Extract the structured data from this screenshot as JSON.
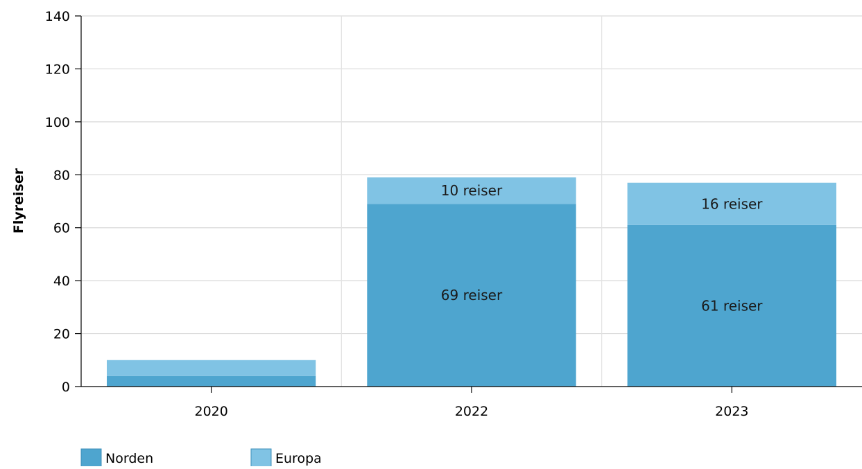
{
  "chart_data": {
    "type": "bar",
    "stacked": true,
    "categories": [
      "2020",
      "2022",
      "2023"
    ],
    "series": [
      {
        "name": "Norden",
        "values": [
          4,
          69,
          61
        ],
        "labels": [
          "",
          "69 reiser",
          "61 reiser"
        ],
        "color": "#4ea5cf"
      },
      {
        "name": "Europa",
        "values": [
          6,
          10,
          16
        ],
        "labels": [
          "",
          "10 reiser",
          "16 reiser"
        ],
        "color": "#80c3e4"
      }
    ],
    "title": "",
    "xlabel": "",
    "ylabel": "Flyreiser",
    "ylim": [
      0,
      140
    ],
    "yticks": [
      0,
      20,
      40,
      60,
      80,
      100,
      120,
      140
    ],
    "grid": true,
    "legend": "bottom-left"
  }
}
